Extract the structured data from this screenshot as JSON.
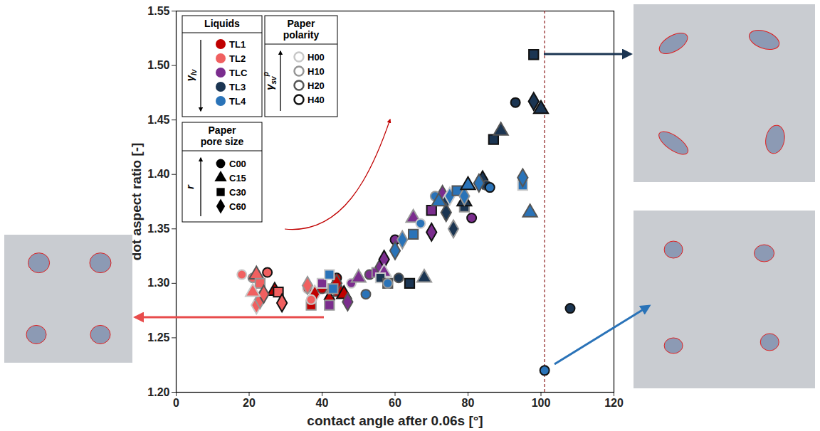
{
  "chart_data": {
    "type": "scatter",
    "x_label": "contact angle after 0.06s [°]",
    "y_label": "dot aspect ratio [-]",
    "xlim": [
      0,
      120
    ],
    "xticks": [
      0,
      20,
      40,
      60,
      80,
      100,
      120
    ],
    "ylim": [
      1.2,
      1.55
    ],
    "yticks": [
      {
        "value": 1.2,
        "label": "1.20"
      },
      {
        "value": 1.25,
        "label": "1.25"
      },
      {
        "value": 1.3,
        "label": "1.30"
      },
      {
        "value": 1.35,
        "label": "1.35"
      },
      {
        "value": 1.4,
        "label": "1.40"
      },
      {
        "value": 1.45,
        "label": "1.45"
      },
      {
        "value": 1.5,
        "label": "1.50"
      },
      {
        "value": 1.55,
        "label": "1.55"
      }
    ],
    "grid": false,
    "legend": "top-left",
    "reference_line": {
      "x": 101,
      "color": "#8b1a1a",
      "line_style": "dashed"
    },
    "liquid_legend": {
      "title": "Liquids",
      "symbol": {
        "base": "γ",
        "sub": "lv",
        "sup": ""
      }
    },
    "polarity_legend": {
      "title": "Paper polarity",
      "symbol": {
        "base": "γ",
        "sub": "sv",
        "sup": "p"
      },
      "entries": [
        {
          "name": "H00",
          "color": "#c8c8c8"
        },
        {
          "name": "H10",
          "color": "#969696"
        },
        {
          "name": "H20",
          "color": "#555555"
        },
        {
          "name": "H40",
          "color": "#111111"
        }
      ]
    },
    "pore_legend": {
      "title": "Paper pore size",
      "symbol": {
        "base": "r",
        "sub": "",
        "sup": ""
      },
      "entries": [
        {
          "name": "C00",
          "marker": "circle"
        },
        {
          "name": "C15",
          "marker": "triangle"
        },
        {
          "name": "C30",
          "marker": "square"
        },
        {
          "name": "C60",
          "marker": "diamond"
        }
      ]
    },
    "series": [
      {
        "name": "TL1",
        "color": "#c00000",
        "x": [
          36,
          37,
          38,
          40,
          42,
          43,
          44,
          45,
          46,
          44,
          27
        ],
        "y": [
          1.295,
          1.28,
          1.29,
          1.295,
          1.285,
          1.295,
          1.305,
          1.292,
          1.29,
          1.3,
          1.293
        ],
        "pore_size": [
          "C00",
          "C30",
          "C60",
          "C00",
          "C60",
          "C15",
          "C00",
          "C15",
          "C15",
          "C60",
          "C15"
        ],
        "paper_polarity": [
          "H00",
          "H10",
          "H00",
          "H20",
          "H40",
          "H10",
          "H40",
          "H20",
          "H40",
          "H20",
          "H40"
        ]
      },
      {
        "name": "TL2",
        "color": "#f06060",
        "x": [
          18,
          21,
          22,
          23,
          25,
          22,
          23,
          24,
          21,
          28,
          29,
          36,
          37
        ],
        "y": [
          1.308,
          1.305,
          1.308,
          1.3,
          1.31,
          1.28,
          1.285,
          1.29,
          1.292,
          1.292,
          1.282,
          1.298,
          1.285
        ],
        "pore_size": [
          "C00",
          "C00",
          "C15",
          "C30",
          "C00",
          "C60",
          "C60",
          "C60",
          "C15",
          "C30",
          "C60",
          "C60",
          "C00"
        ],
        "paper_polarity": [
          "H00",
          "H10",
          "H20",
          "H10",
          "H40",
          "H00",
          "H10",
          "H20",
          "H00",
          "H40",
          "H40",
          "H10",
          "H00"
        ]
      },
      {
        "name": "TLC",
        "color": "#7b2d8e",
        "x": [
          40,
          42,
          47,
          48,
          50,
          53,
          55,
          56,
          57,
          57,
          60,
          65,
          70,
          70,
          73,
          81
        ],
        "y": [
          1.3,
          1.28,
          1.283,
          1.3,
          1.305,
          1.308,
          1.31,
          1.315,
          1.322,
          1.31,
          1.34,
          1.36,
          1.367,
          1.347,
          1.382,
          1.36
        ],
        "pore_size": [
          "C30",
          "C30",
          "C60",
          "C00",
          "C15",
          "C00",
          "C30",
          "C60",
          "C60",
          "C15",
          "C00",
          "C15",
          "C30",
          "C60",
          "C15",
          "C00"
        ],
        "paper_polarity": [
          "H00",
          "H10",
          "H20",
          "H00",
          "H10",
          "H20",
          "H10",
          "H20",
          "H40",
          "H00",
          "H40",
          "H10",
          "H40",
          "H40",
          "H20",
          "H40"
        ]
      },
      {
        "name": "TL3",
        "color": "#1b3552",
        "x": [
          56,
          58,
          61,
          64,
          68,
          74,
          74,
          76,
          79,
          79,
          84,
          85,
          87,
          89,
          93,
          98,
          100,
          98,
          108
        ],
        "y": [
          1.305,
          1.3,
          1.305,
          1.3,
          1.305,
          1.375,
          1.365,
          1.35,
          1.37,
          1.375,
          1.395,
          1.39,
          1.432,
          1.44,
          1.466,
          1.467,
          1.46,
          1.51,
          1.277
        ],
        "pore_size": [
          "C30",
          "C30",
          "C00",
          "C30",
          "C15",
          "C60",
          "C60",
          "C60",
          "C30",
          "C15",
          "C60",
          "C00",
          "C30",
          "C15",
          "C00",
          "C60",
          "C15",
          "C30",
          "C00"
        ],
        "paper_polarity": [
          "H00",
          "H20",
          "H20",
          "H40",
          "H10",
          "H00",
          "H20",
          "H10",
          "H10",
          "H40",
          "H40",
          "H20",
          "H40",
          "H20",
          "H40",
          "H40",
          "H40",
          "H40",
          "H40"
        ]
      },
      {
        "name": "TL4",
        "color": "#2a73b8",
        "x": [
          42,
          43,
          52,
          58,
          60,
          62,
          65,
          67,
          71,
          72,
          75,
          77,
          79,
          80,
          83,
          86,
          95,
          95,
          97,
          101
        ],
        "y": [
          1.308,
          1.295,
          1.29,
          1.3,
          1.33,
          1.34,
          1.345,
          1.355,
          1.38,
          1.375,
          1.38,
          1.385,
          1.38,
          1.39,
          1.392,
          1.388,
          1.39,
          1.397,
          1.365,
          1.22
        ],
        "pore_size": [
          "C30",
          "C30",
          "C00",
          "C00",
          "C60",
          "C60",
          "C30",
          "C00",
          "C00",
          "C15",
          "C60",
          "C30",
          "C60",
          "C15",
          "C60",
          "C00",
          "C30",
          "C60",
          "C15",
          "C00"
        ],
        "paper_polarity": [
          "H00",
          "H10",
          "H20",
          "H10",
          "H20",
          "H10",
          "H20",
          "H00",
          "H10",
          "H20",
          "H00",
          "H20",
          "H10",
          "H40",
          "H20",
          "H40",
          "H00",
          "H20",
          "H20",
          "H40"
        ]
      }
    ]
  }
}
